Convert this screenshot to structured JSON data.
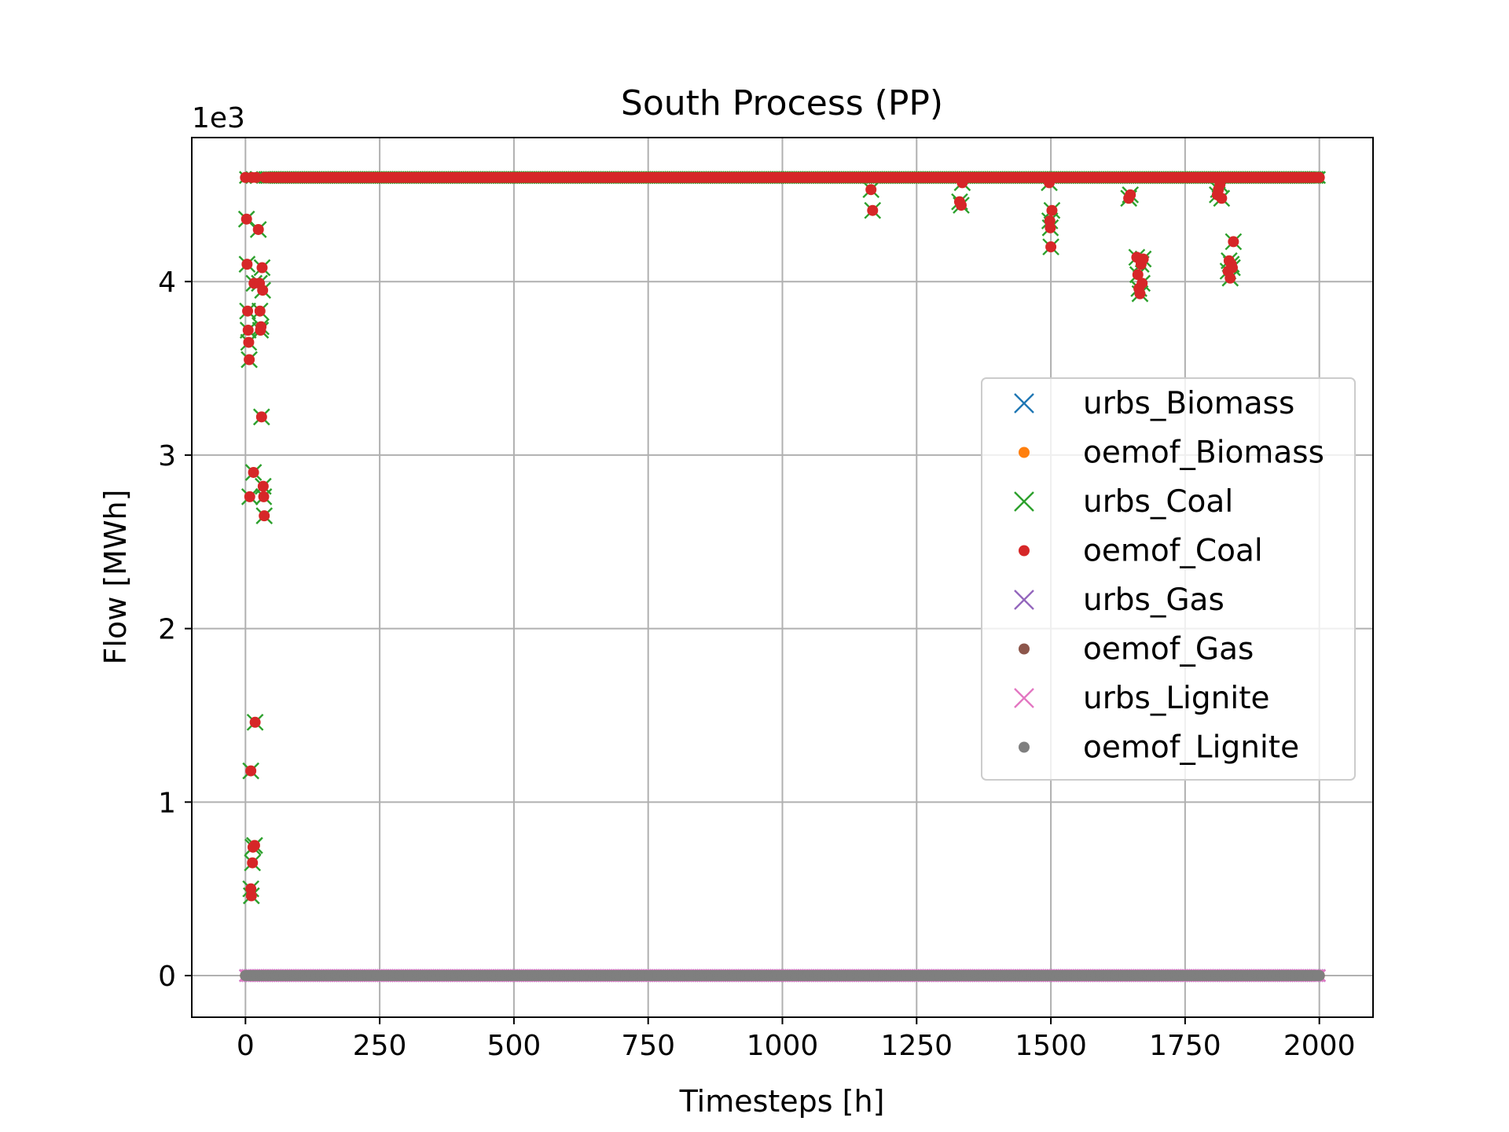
{
  "chart_data": {
    "type": "scatter",
    "title": "South Process (PP)",
    "xlabel": "Timesteps [h]",
    "ylabel": "Flow [MWh]",
    "y_offset_label": "1e3",
    "y_multiplier": 1000,
    "xlim": [
      -100,
      2100
    ],
    "ylim": [
      -240,
      4830
    ],
    "x_ticks": [
      0,
      250,
      500,
      750,
      1000,
      1250,
      1500,
      1750,
      2000
    ],
    "x_tick_labels": [
      "0",
      "250",
      "500",
      "750",
      "1000",
      "1250",
      "1500",
      "1750",
      "2000"
    ],
    "y_ticks": [
      0,
      1000,
      2000,
      3000,
      4000
    ],
    "y_tick_labels": [
      "0",
      "1",
      "2",
      "3",
      "4"
    ],
    "grid": true,
    "legend_position": "center-right",
    "timesteps_range": [
      0,
      2000
    ],
    "colors": {
      "urbs_Biomass": "#1f77b4",
      "oemof_Biomass": "#ff7f0e",
      "urbs_Coal": "#2ca02c",
      "oemof_Coal": "#d62728",
      "urbs_Gas": "#9467bd",
      "oemof_Gas": "#8c564b",
      "urbs_Lignite": "#e377c2",
      "oemof_Lignite": "#7f7f7f"
    },
    "series": [
      {
        "name": "urbs_Biomass",
        "marker": "x",
        "color": "#1f77b4",
        "constant_value": 0
      },
      {
        "name": "oemof_Biomass",
        "marker": "o",
        "color": "#ff7f0e",
        "constant_value": 0
      },
      {
        "name": "urbs_Coal",
        "marker": "x",
        "color": "#2ca02c",
        "baseline_value": 4600
      },
      {
        "name": "oemof_Coal",
        "marker": "o",
        "color": "#d62728",
        "baseline_value": 4600
      },
      {
        "name": "urbs_Gas",
        "marker": "x",
        "color": "#9467bd",
        "constant_value": 0
      },
      {
        "name": "oemof_Gas",
        "marker": "o",
        "color": "#8c564b",
        "constant_value": 0
      },
      {
        "name": "urbs_Lignite",
        "marker": "x",
        "color": "#e377c2",
        "constant_value": 0
      },
      {
        "name": "oemof_Lignite",
        "marker": "o",
        "color": "#7f7f7f",
        "constant_value": 0
      }
    ],
    "coal_dips": [
      {
        "x": 2,
        "y": 4360
      },
      {
        "x": 3,
        "y": 4100
      },
      {
        "x": 4,
        "y": 3830
      },
      {
        "x": 5,
        "y": 3720
      },
      {
        "x": 6,
        "y": 3650
      },
      {
        "x": 7,
        "y": 3550
      },
      {
        "x": 8,
        "y": 2760
      },
      {
        "x": 10,
        "y": 1180
      },
      {
        "x": 10,
        "y": 500
      },
      {
        "x": 11,
        "y": 460
      },
      {
        "x": 13,
        "y": 650
      },
      {
        "x": 14,
        "y": 740
      },
      {
        "x": 15,
        "y": 2900
      },
      {
        "x": 16,
        "y": 3990
      },
      {
        "x": 17,
        "y": 750
      },
      {
        "x": 18,
        "y": 1460
      },
      {
        "x": 24,
        "y": 4300
      },
      {
        "x": 26,
        "y": 3990
      },
      {
        "x": 27,
        "y": 3830
      },
      {
        "x": 28,
        "y": 3720
      },
      {
        "x": 29,
        "y": 3740
      },
      {
        "x": 30,
        "y": 3220
      },
      {
        "x": 31,
        "y": 4080
      },
      {
        "x": 32,
        "y": 3950
      },
      {
        "x": 33,
        "y": 2820
      },
      {
        "x": 34,
        "y": 2760
      },
      {
        "x": 35,
        "y": 2650
      },
      {
        "x": 1165,
        "y": 4530
      },
      {
        "x": 1168,
        "y": 4410
      },
      {
        "x": 1330,
        "y": 4460
      },
      {
        "x": 1333,
        "y": 4440
      },
      {
        "x": 1335,
        "y": 4570
      },
      {
        "x": 1497,
        "y": 4570
      },
      {
        "x": 1498,
        "y": 4350
      },
      {
        "x": 1499,
        "y": 4310
      },
      {
        "x": 1500,
        "y": 4200
      },
      {
        "x": 1502,
        "y": 4410
      },
      {
        "x": 1645,
        "y": 4480
      },
      {
        "x": 1648,
        "y": 4500
      },
      {
        "x": 1660,
        "y": 4140
      },
      {
        "x": 1662,
        "y": 4040
      },
      {
        "x": 1664,
        "y": 3960
      },
      {
        "x": 1666,
        "y": 3930
      },
      {
        "x": 1668,
        "y": 4100
      },
      {
        "x": 1670,
        "y": 3990
      },
      {
        "x": 1672,
        "y": 4130
      },
      {
        "x": 1810,
        "y": 4500
      },
      {
        "x": 1812,
        "y": 4530
      },
      {
        "x": 1815,
        "y": 4560
      },
      {
        "x": 1818,
        "y": 4480
      },
      {
        "x": 1830,
        "y": 4060
      },
      {
        "x": 1832,
        "y": 4120
      },
      {
        "x": 1834,
        "y": 4020
      },
      {
        "x": 1836,
        "y": 4100
      },
      {
        "x": 1838,
        "y": 4080
      },
      {
        "x": 1840,
        "y": 4230
      }
    ]
  }
}
